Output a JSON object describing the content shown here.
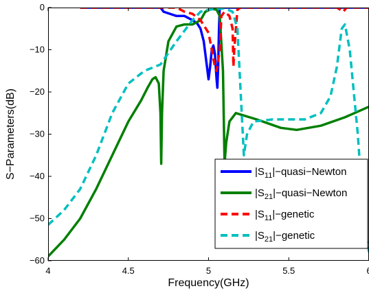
{
  "chart_data": {
    "type": "line",
    "xlabel": "Frequency(GHz)",
    "ylabel": "S−Parameters(dB)",
    "xlim": [
      4,
      6
    ],
    "ylim": [
      -60,
      0
    ],
    "x_ticks": [
      4,
      4.5,
      5,
      5.5,
      6
    ],
    "x_tick_labels": [
      "4",
      "4.5",
      "5",
      "5.5",
      "6"
    ],
    "y_ticks": [
      -60,
      -50,
      -40,
      -30,
      -20,
      -10,
      0
    ],
    "y_tick_labels": [
      "−60",
      "−50",
      "−40",
      "−30",
      "−20",
      "−10",
      "0"
    ],
    "grid": false,
    "legend_position": "lower-right",
    "series": [
      {
        "name": "|S11|−quasi−Newton",
        "legend_base": "|S",
        "legend_sub": "11",
        "legend_rest": "|−quasi−Newton",
        "color": "#0000ff",
        "dash": "solid",
        "points": [
          [
            4.2,
            0
          ],
          [
            4.7,
            0
          ],
          [
            4.72,
            -1
          ],
          [
            4.8,
            -2
          ],
          [
            4.85,
            -2
          ],
          [
            4.9,
            -3
          ],
          [
            4.93,
            -3.8
          ],
          [
            4.95,
            -5
          ],
          [
            4.97,
            -8
          ],
          [
            4.99,
            -14
          ],
          [
            5.0,
            -17
          ],
          [
            5.01,
            -14
          ],
          [
            5.02,
            -10
          ],
          [
            5.03,
            -9
          ],
          [
            5.04,
            -11
          ],
          [
            5.05,
            -17
          ],
          [
            5.055,
            -19
          ],
          [
            5.06,
            -14
          ],
          [
            5.065,
            -5
          ],
          [
            5.07,
            0
          ],
          [
            5.2,
            0
          ],
          [
            6.0,
            0
          ]
        ]
      },
      {
        "name": "|S21|−quasi−Newton",
        "legend_base": "|S",
        "legend_sub": "21",
        "legend_rest": "|−quasi−Newton",
        "color": "#007f00",
        "dash": "solid",
        "points": [
          [
            4,
            -59
          ],
          [
            4.1,
            -55
          ],
          [
            4.2,
            -50
          ],
          [
            4.3,
            -43
          ],
          [
            4.4,
            -35
          ],
          [
            4.5,
            -27
          ],
          [
            4.58,
            -22
          ],
          [
            4.62,
            -19
          ],
          [
            4.65,
            -17
          ],
          [
            4.67,
            -16.5
          ],
          [
            4.69,
            -18
          ],
          [
            4.7,
            -25
          ],
          [
            4.705,
            -37
          ],
          [
            4.71,
            -25
          ],
          [
            4.72,
            -15
          ],
          [
            4.75,
            -8
          ],
          [
            4.8,
            -4.5
          ],
          [
            4.85,
            -4
          ],
          [
            4.9,
            -4
          ],
          [
            4.95,
            -3
          ],
          [
            4.98,
            -1
          ],
          [
            5.02,
            -0.3
          ],
          [
            5.05,
            -0.5
          ],
          [
            5.07,
            -2
          ],
          [
            5.09,
            -15
          ],
          [
            5.1,
            -37
          ],
          [
            5.11,
            -32
          ],
          [
            5.13,
            -27
          ],
          [
            5.17,
            -25
          ],
          [
            5.3,
            -26.5
          ],
          [
            5.45,
            -28.5
          ],
          [
            5.55,
            -29
          ],
          [
            5.7,
            -28
          ],
          [
            5.85,
            -26
          ],
          [
            6.0,
            -23.5
          ]
        ]
      },
      {
        "name": "|S11|−genetic",
        "legend_base": "|S",
        "legend_sub": "11",
        "legend_rest": "|−genetic",
        "color": "#ff0000",
        "dash": "dashed",
        "points": [
          [
            4.2,
            0
          ],
          [
            4.7,
            0
          ],
          [
            4.8,
            0
          ],
          [
            4.85,
            -1
          ],
          [
            4.9,
            -1.5
          ],
          [
            4.95,
            -3
          ],
          [
            5.0,
            -6
          ],
          [
            5.02,
            -10
          ],
          [
            5.04,
            -14
          ],
          [
            5.05,
            -15
          ],
          [
            5.07,
            -10
          ],
          [
            5.08,
            -2
          ],
          [
            5.1,
            -1
          ],
          [
            5.13,
            -2
          ],
          [
            5.15,
            -5
          ],
          [
            5.155,
            -14
          ],
          [
            5.16,
            -10
          ],
          [
            5.18,
            -0.5
          ],
          [
            5.2,
            0
          ],
          [
            5.8,
            0
          ],
          [
            5.84,
            -1
          ],
          [
            5.86,
            0
          ],
          [
            6.0,
            0
          ]
        ]
      },
      {
        "name": "|S21|−genetic",
        "legend_base": "|S",
        "legend_sub": "21",
        "legend_rest": "|−genetic",
        "color": "#00bfbf",
        "dash": "dashed",
        "points": [
          [
            4,
            -51.5
          ],
          [
            4.1,
            -48
          ],
          [
            4.2,
            -43
          ],
          [
            4.3,
            -35
          ],
          [
            4.4,
            -25
          ],
          [
            4.5,
            -18
          ],
          [
            4.6,
            -15
          ],
          [
            4.7,
            -13.5
          ],
          [
            4.8,
            -8
          ],
          [
            4.9,
            -3
          ],
          [
            4.95,
            -1
          ],
          [
            5.0,
            -0.5
          ],
          [
            5.1,
            -0.2
          ],
          [
            5.15,
            -1
          ],
          [
            5.18,
            -5
          ],
          [
            5.2,
            -20
          ],
          [
            5.22,
            -35
          ],
          [
            5.24,
            -30
          ],
          [
            5.28,
            -27
          ],
          [
            5.4,
            -26.5
          ],
          [
            5.6,
            -26.5
          ],
          [
            5.7,
            -25
          ],
          [
            5.76,
            -21
          ],
          [
            5.8,
            -14
          ],
          [
            5.83,
            -5
          ],
          [
            5.85,
            -4
          ],
          [
            5.88,
            -10
          ],
          [
            5.93,
            -30
          ],
          [
            5.97,
            -52
          ],
          [
            6.0,
            -58
          ]
        ]
      }
    ]
  }
}
